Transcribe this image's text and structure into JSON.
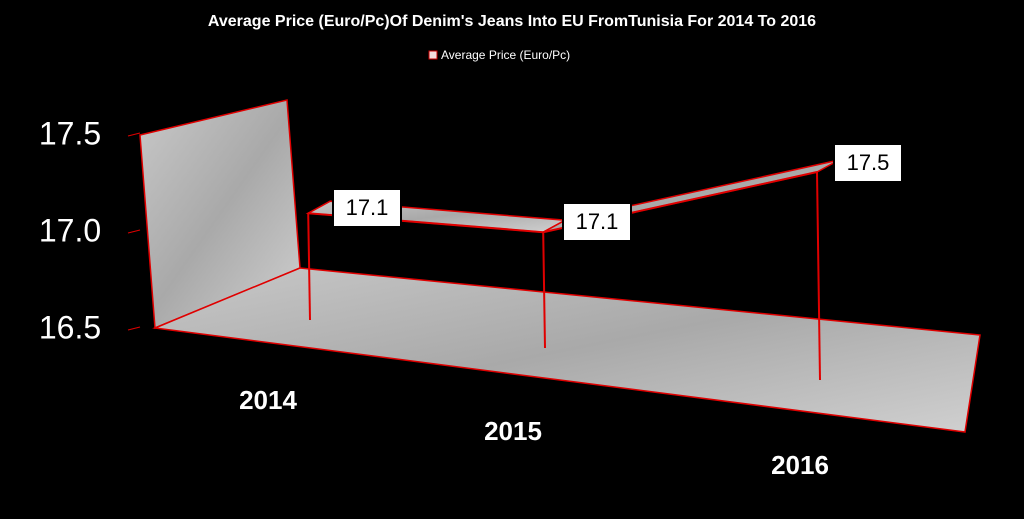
{
  "chart_data": {
    "type": "line",
    "title": "Average Price (Euro/Pc)Of Denim's Jeans Into EU FromTunisia For 2014 To 2016",
    "categories": [
      "2014",
      "2015",
      "2016"
    ],
    "series": [
      {
        "name": "Average Price (Euro/Pc)",
        "color": "#e00000",
        "values": [
          17.1,
          17.1,
          17.5
        ]
      }
    ],
    "ylim": [
      16.5,
      17.5
    ],
    "yticks": [
      16.5,
      {
        "value": 17,
        "label": "17.0"
      },
      17.5
    ],
    "legend": "top"
  }
}
